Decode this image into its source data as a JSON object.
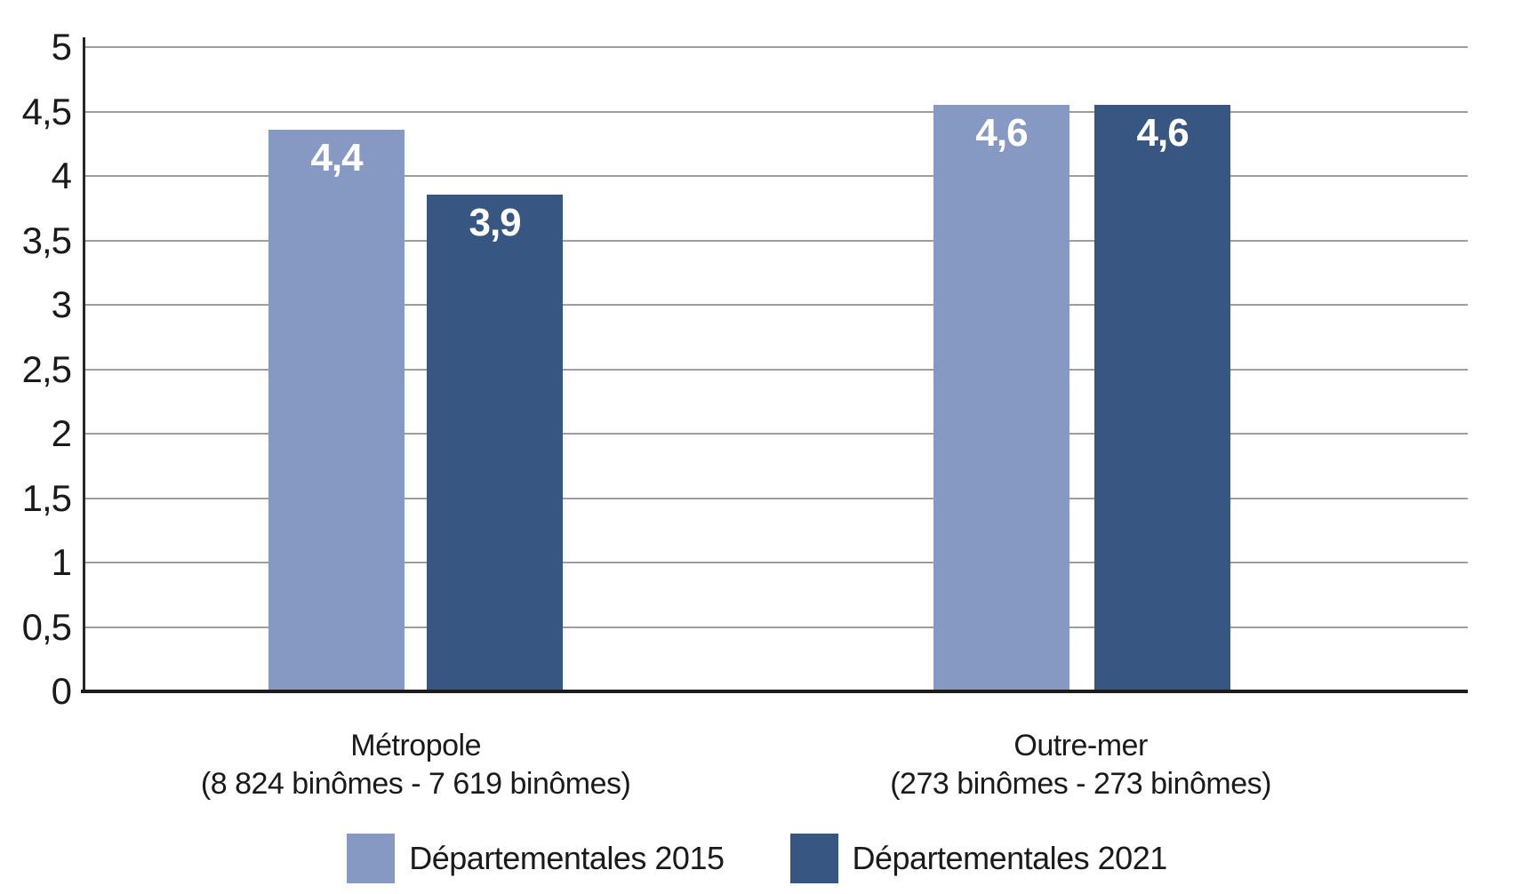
{
  "chart_data": {
    "type": "bar",
    "title": "",
    "xlabel": "",
    "ylabel": "",
    "categories": [
      {
        "name": "Métropole",
        "subtitle": "(8 824 binômes - 7 619 binômes)"
      },
      {
        "name": "Outre-mer",
        "subtitle": "(273 binômes - 273 binômes)"
      }
    ],
    "series": [
      {
        "name": "Départementales 2015",
        "color": "#8599C3",
        "values": [
          4.4,
          4.6
        ],
        "value_labels": [
          "4,4",
          "4,6"
        ]
      },
      {
        "name": "Départementales 2021",
        "color": "#375682",
        "values": [
          3.9,
          4.6
        ],
        "value_labels": [
          "3,9",
          "4,6"
        ]
      }
    ],
    "ylim": [
      0,
      5
    ],
    "ytick_step": 0.5,
    "yticks": [
      "0",
      "0,5",
      "1",
      "1,5",
      "2",
      "2,5",
      "3",
      "3,5",
      "4",
      "4,5",
      "5"
    ],
    "grid": true,
    "legend_position": "bottom",
    "layout": {
      "bar_heights": [
        [
          "87.2%",
          "91.0%"
        ],
        [
          "77.1%",
          "91.0%"
        ]
      ],
      "grid_color": "#9E9E9E",
      "axis_color": "#1C1C1C",
      "value_label_color": "#FFFFFF",
      "background": "#FFFFFF"
    }
  }
}
